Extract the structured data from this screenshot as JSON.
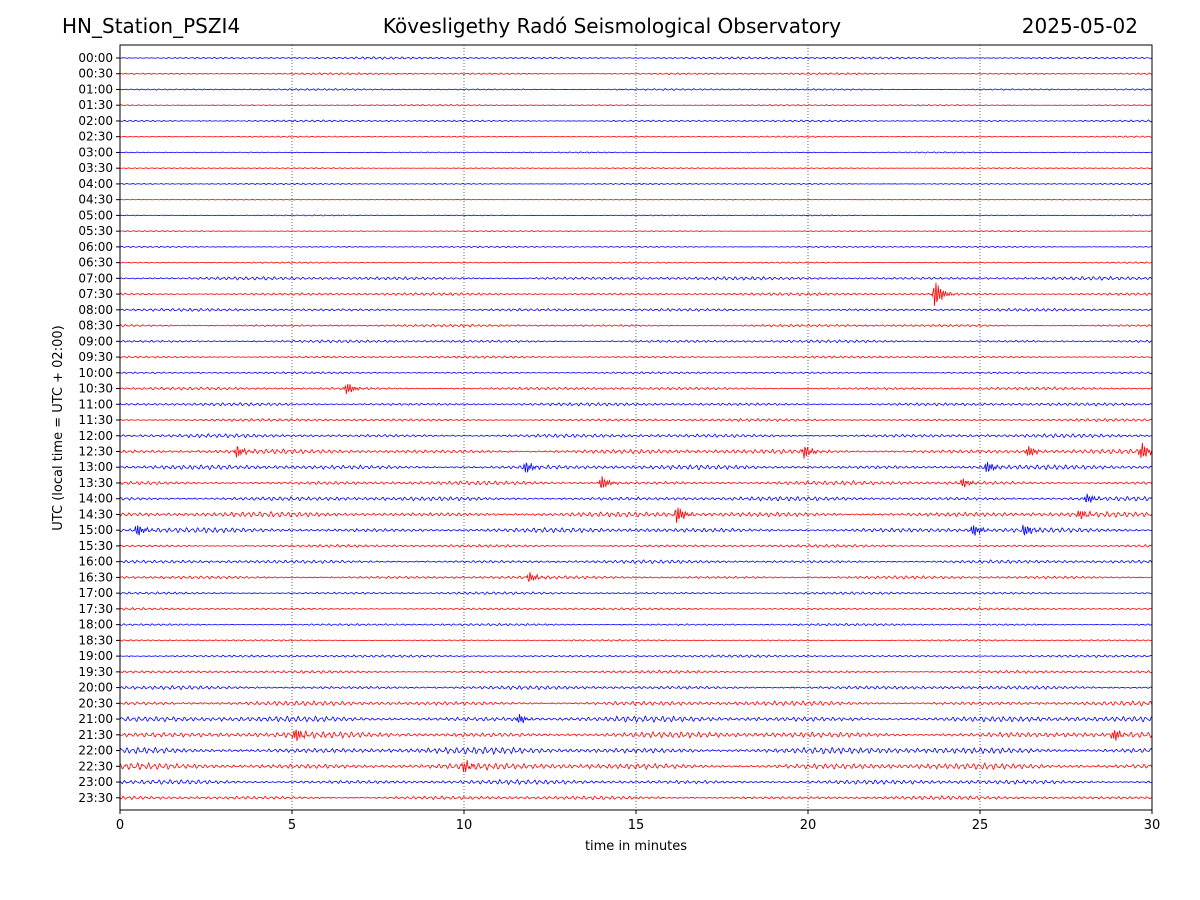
{
  "header": {
    "station": "HN_Station_PSZI4",
    "observatory": "Kövesligethy Radó Seismological Observatory",
    "date": "2025-05-02"
  },
  "chart_data": {
    "type": "line",
    "title": "Kövesligethy Radó Seismological Observatory",
    "xlabel": "time in minutes",
    "ylabel": "UTC (local time = UTC + 02:00)",
    "xlim": [
      0,
      30
    ],
    "xticks": [
      "0",
      "5",
      "10",
      "15",
      "20",
      "25",
      "30"
    ],
    "grid": "vertical dotted at 5-minute ticks",
    "colors": [
      "#0000ff",
      "#ff0000"
    ],
    "rows": [
      "00:00",
      "00:30",
      "01:00",
      "01:30",
      "02:00",
      "02:30",
      "03:00",
      "03:30",
      "04:00",
      "04:30",
      "05:00",
      "05:30",
      "06:00",
      "06:30",
      "07:00",
      "07:30",
      "08:00",
      "08:30",
      "09:00",
      "09:30",
      "10:00",
      "10:30",
      "11:00",
      "11:30",
      "12:00",
      "12:30",
      "13:00",
      "13:30",
      "14:00",
      "14:30",
      "15:00",
      "15:30",
      "16:00",
      "16:30",
      "17:00",
      "17:30",
      "18:00",
      "18:30",
      "19:00",
      "19:30",
      "20:00",
      "20:30",
      "21:00",
      "21:30",
      "22:00",
      "22:30",
      "23:00",
      "23:30"
    ],
    "noise_level": [
      0.8,
      0.7,
      0.6,
      0.5,
      0.7,
      0.5,
      0.4,
      0.4,
      0.5,
      0.3,
      0.4,
      0.4,
      0.5,
      0.5,
      1.2,
      1.0,
      1.0,
      0.9,
      1.0,
      0.8,
      0.7,
      1.0,
      1.1,
      1.0,
      1.3,
      1.6,
      1.6,
      1.4,
      1.5,
      1.8,
      1.7,
      1.0,
      1.2,
      1.1,
      0.9,
      0.8,
      0.8,
      0.6,
      0.9,
      1.0,
      1.3,
      1.6,
      2.0,
      2.1,
      2.3,
      2.2,
      1.6,
      1.3
    ],
    "events": [
      {
        "row": "07:30",
        "minute": 23.7,
        "amplitude": 14
      },
      {
        "row": "10:30",
        "minute": 6.6,
        "amplitude": 6
      },
      {
        "row": "12:30",
        "minute": 3.4,
        "amplitude": 6
      },
      {
        "row": "12:30",
        "minute": 19.9,
        "amplitude": 7
      },
      {
        "row": "12:30",
        "minute": 26.4,
        "amplitude": 6
      },
      {
        "row": "12:30",
        "minute": 29.7,
        "amplitude": 9
      },
      {
        "row": "13:00",
        "minute": 11.8,
        "amplitude": 6
      },
      {
        "row": "13:00",
        "minute": 25.2,
        "amplitude": 6
      },
      {
        "row": "13:30",
        "minute": 14.0,
        "amplitude": 7
      },
      {
        "row": "13:30",
        "minute": 24.5,
        "amplitude": 5
      },
      {
        "row": "14:00",
        "minute": 28.1,
        "amplitude": 5
      },
      {
        "row": "14:30",
        "minute": 16.2,
        "amplitude": 9
      },
      {
        "row": "14:30",
        "minute": 27.9,
        "amplitude": 5
      },
      {
        "row": "15:00",
        "minute": 0.5,
        "amplitude": 6
      },
      {
        "row": "15:00",
        "minute": 24.8,
        "amplitude": 6
      },
      {
        "row": "15:00",
        "minute": 26.3,
        "amplitude": 6
      },
      {
        "row": "16:30",
        "minute": 11.9,
        "amplitude": 5
      },
      {
        "row": "21:00",
        "minute": 11.6,
        "amplitude": 5
      },
      {
        "row": "21:30",
        "minute": 5.1,
        "amplitude": 7
      },
      {
        "row": "21:30",
        "minute": 28.9,
        "amplitude": 6
      },
      {
        "row": "22:30",
        "minute": 10.0,
        "amplitude": 6
      }
    ]
  }
}
